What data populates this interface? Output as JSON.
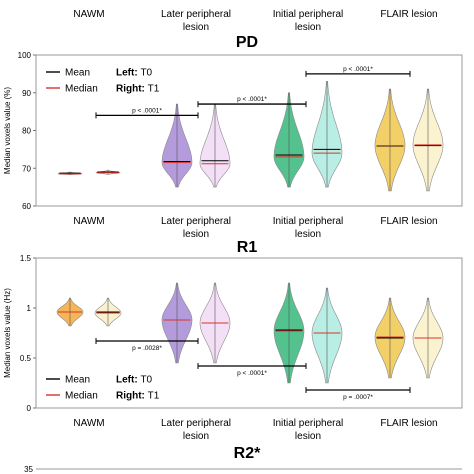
{
  "legend": {
    "mean_label": "Mean",
    "median_label": "Median",
    "left_key": "Left:",
    "left_value": "T0",
    "right_key": "Right:",
    "right_value": "T1"
  },
  "colors": {
    "mean_line": "#000000",
    "median_line": "#d9342b",
    "NAWM": [
      "#f2a93b",
      "#f6e7a6"
    ],
    "Later peripheral lesion": [
      "#a78bd6",
      "#e9c6ef"
    ],
    "Initial peripheral lesion": [
      "#35b77a",
      "#7fe0d0"
    ],
    "FLAIR lesion": [
      "#f0c84c",
      "#f8eaa7"
    ]
  },
  "chart_data": [
    {
      "type": "violin",
      "title": "",
      "ylabel": "",
      "categories": [
        "NAWM",
        "Later peripheral lesion",
        "Initial peripheral lesion",
        "FLAIR lesion"
      ],
      "series": [],
      "note": "Top panel cropped; only category labels visible."
    },
    {
      "type": "violin",
      "title": "PD",
      "ylabel": "Median voxels value (%)",
      "ylim": [
        60,
        100
      ],
      "yticks": [
        60,
        70,
        80,
        90,
        100
      ],
      "categories": [
        "NAWM",
        "Later peripheral lesion",
        "Initial peripheral lesion",
        "FLAIR lesion"
      ],
      "series": [
        {
          "name": "T0",
          "mean": [
            68.7,
            71.8,
            73.5,
            75.9
          ],
          "median": [
            68.5,
            71.5,
            73.0,
            76.0
          ],
          "min": [
            68.3,
            65.0,
            65.0,
            64.0
          ],
          "max": [
            69.0,
            87.0,
            90.0,
            91.0
          ]
        },
        {
          "name": "T1",
          "mean": [
            69.0,
            72.0,
            75.0,
            76.0
          ],
          "median": [
            68.8,
            71.2,
            74.0,
            76.2
          ],
          "min": [
            68.4,
            65.0,
            65.0,
            64.0
          ],
          "max": [
            69.5,
            87.0,
            93.0,
            91.0
          ]
        }
      ],
      "comparisons": [
        {
          "label": "p < .0001*",
          "y": 84
        },
        {
          "label": "p < .0001*",
          "y": 87
        },
        {
          "label": "p < .0001*",
          "y": 95
        }
      ],
      "legend_position": "top-left"
    },
    {
      "type": "violin",
      "title": "R1",
      "ylabel": "Median voxels value (Hz)",
      "ylim": [
        0,
        1.5
      ],
      "yticks": [
        0,
        0.5,
        1,
        1.5
      ],
      "categories": [
        "NAWM",
        "Later peripheral lesion",
        "Initial peripheral lesion",
        "FLAIR lesion"
      ],
      "series": [
        {
          "name": "T0",
          "mean": [
            0.96,
            0.88,
            0.78,
            0.7
          ],
          "median": [
            0.96,
            0.88,
            0.77,
            0.71
          ],
          "min": [
            0.82,
            0.45,
            0.25,
            0.3
          ],
          "max": [
            1.1,
            1.25,
            1.25,
            1.1
          ]
        },
        {
          "name": "T1",
          "mean": [
            0.96,
            0.85,
            0.75,
            0.7
          ],
          "median": [
            0.95,
            0.85,
            0.75,
            0.7
          ],
          "min": [
            0.82,
            0.45,
            0.25,
            0.3
          ],
          "max": [
            1.1,
            1.25,
            1.2,
            1.1
          ]
        }
      ],
      "comparisons": [
        {
          "label": "p = .0028*",
          "y": 0.67
        },
        {
          "label": "p < .0001*",
          "y": 0.42
        },
        {
          "label": "p = .0007*",
          "y": 0.18
        }
      ],
      "legend_position": "bottom-left"
    },
    {
      "type": "violin",
      "title": "R2*",
      "ylabel": "",
      "yticks_visible": [
        "35"
      ],
      "series": []
    }
  ],
  "top_panel": {
    "labels": [
      {
        "id": "nawm",
        "lines": [
          "NAWM"
        ]
      },
      {
        "id": "later",
        "lines": [
          "Later peripheral",
          "lesion"
        ]
      },
      {
        "id": "initial",
        "lines": [
          "Initial peripheral",
          "lesion"
        ]
      },
      {
        "id": "flair",
        "lines": [
          "FLAIR lesion"
        ]
      }
    ]
  },
  "r2_tick": "35"
}
